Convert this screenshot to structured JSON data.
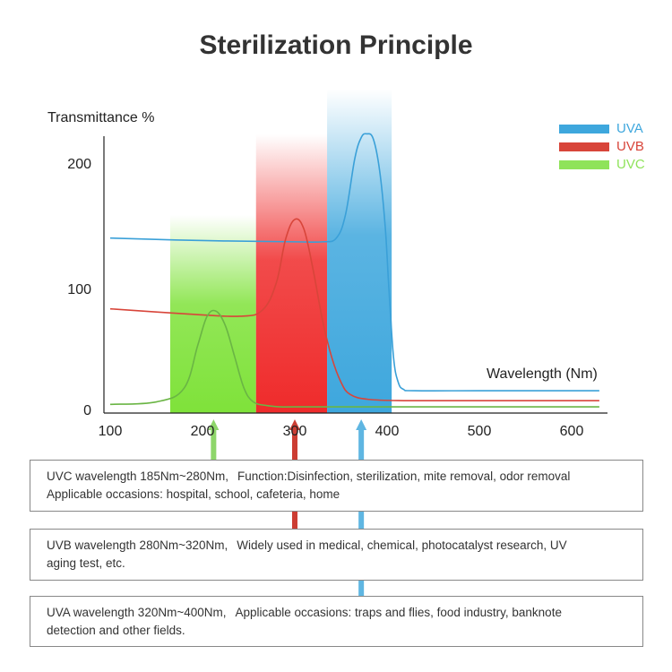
{
  "title": "Sterilization Principle",
  "chart_data": {
    "type": "line",
    "ylabel": "Transmittance %",
    "xlabel": "Wavelength (Nm)",
    "xlim": [
      100,
      630
    ],
    "ylim": [
      0,
      225
    ],
    "x_ticks": [
      100,
      200,
      300,
      400,
      500,
      600
    ],
    "y_ticks": [
      0,
      100,
      200
    ],
    "grid": false,
    "legend_position": "top-right",
    "bands": [
      {
        "name": "UVC",
        "from": 165,
        "to": 258,
        "color": "#7fe23a"
      },
      {
        "name": "UVB",
        "from": 258,
        "to": 335,
        "color": "#ef2b2b"
      },
      {
        "name": "UVA",
        "from": 335,
        "to": 405,
        "color": "#3ea7dd"
      }
    ],
    "series": [
      {
        "name": "UVA",
        "color": "#3aa0d8",
        "x": [
          100,
          200,
          300,
          330,
          345,
          355,
          365,
          372,
          378,
          385,
          392,
          398,
          402,
          407,
          412,
          418,
          430,
          500,
          600,
          630
        ],
        "y": [
          141,
          139,
          138,
          138,
          141,
          160,
          205,
          222,
          225,
          221,
          195,
          150,
          100,
          45,
          25,
          19,
          18,
          18,
          18,
          18
        ]
      },
      {
        "name": "UVB",
        "color": "#d8453a",
        "x": [
          100,
          180,
          240,
          265,
          280,
          290,
          300,
          310,
          320,
          330,
          340,
          350,
          360,
          380,
          420,
          500,
          630
        ],
        "y": [
          84,
          80,
          78,
          83,
          105,
          140,
          156,
          148,
          115,
          75,
          45,
          25,
          15,
          11,
          10,
          10,
          10
        ]
      },
      {
        "name": "UVC",
        "color": "#6ab544",
        "x": [
          100,
          150,
          180,
          195,
          205,
          215,
          225,
          235,
          245,
          255,
          270,
          285,
          300,
          400,
          500,
          630
        ],
        "y": [
          7,
          9,
          20,
          55,
          78,
          82,
          70,
          45,
          20,
          9,
          6,
          5,
          5,
          5,
          5,
          5
        ]
      }
    ],
    "arrows": [
      {
        "band": "UVC",
        "x": 212,
        "color": "#8ed66a"
      },
      {
        "band": "UVB",
        "x": 300,
        "color": "#cc3d33"
      },
      {
        "band": "UVA",
        "x": 372,
        "color": "#5fb6e2"
      }
    ]
  },
  "legend": [
    {
      "label": "UVA",
      "color": "#3ea7dd"
    },
    {
      "label": "UVB",
      "color": "#d8453a"
    },
    {
      "label": "UVC",
      "color": "#8fe35a"
    }
  ],
  "boxes": {
    "uvc": {
      "line1a": "UVC wavelength 185Nm~280Nm,",
      "line1b": "Function:Disinfection, sterilization, mite removal, odor removal",
      "line2": "Applicable occasions: hospital, school, cafeteria, home"
    },
    "uvb": {
      "line1a": "UVB wavelength 280Nm~320Nm,",
      "line1b": "Widely used in medical, chemical, photocatalyst research, UV",
      "line2": "aging test, etc."
    },
    "uva": {
      "line1a": "UVA wavelength 320Nm~400Nm,",
      "line1b": "Applicable occasions: traps and flies, food industry, banknote",
      "line2": "detection and other fields."
    }
  }
}
